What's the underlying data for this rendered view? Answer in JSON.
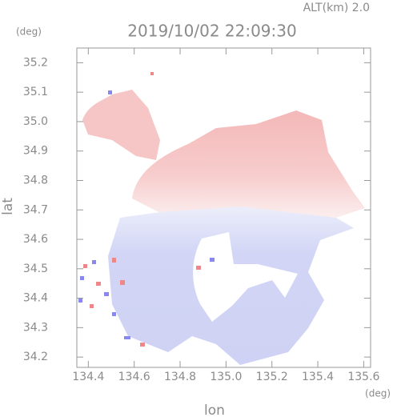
{
  "chart_data": {
    "type": "map",
    "title": "2019/10/02 22:09:30",
    "subtitle": "ALT(km) 2.0",
    "xlabel": "lon",
    "ylabel": "lat",
    "xunit": "(deg)",
    "yunit": "(deg)",
    "xlim": [
      134.35,
      135.63
    ],
    "ylim": [
      34.165,
      35.25
    ],
    "xticks": [
      134.4,
      134.6,
      134.8,
      {
        "value": 135,
        "label": "135.0"
      },
      135.2,
      135.4,
      135.6
    ],
    "yticks": [
      34.2,
      34.3,
      34.4,
      34.5,
      34.6,
      34.7,
      34.8,
      34.9,
      {
        "value": 35,
        "label": "35.0"
      },
      35.1,
      35.2
    ]
  }
}
